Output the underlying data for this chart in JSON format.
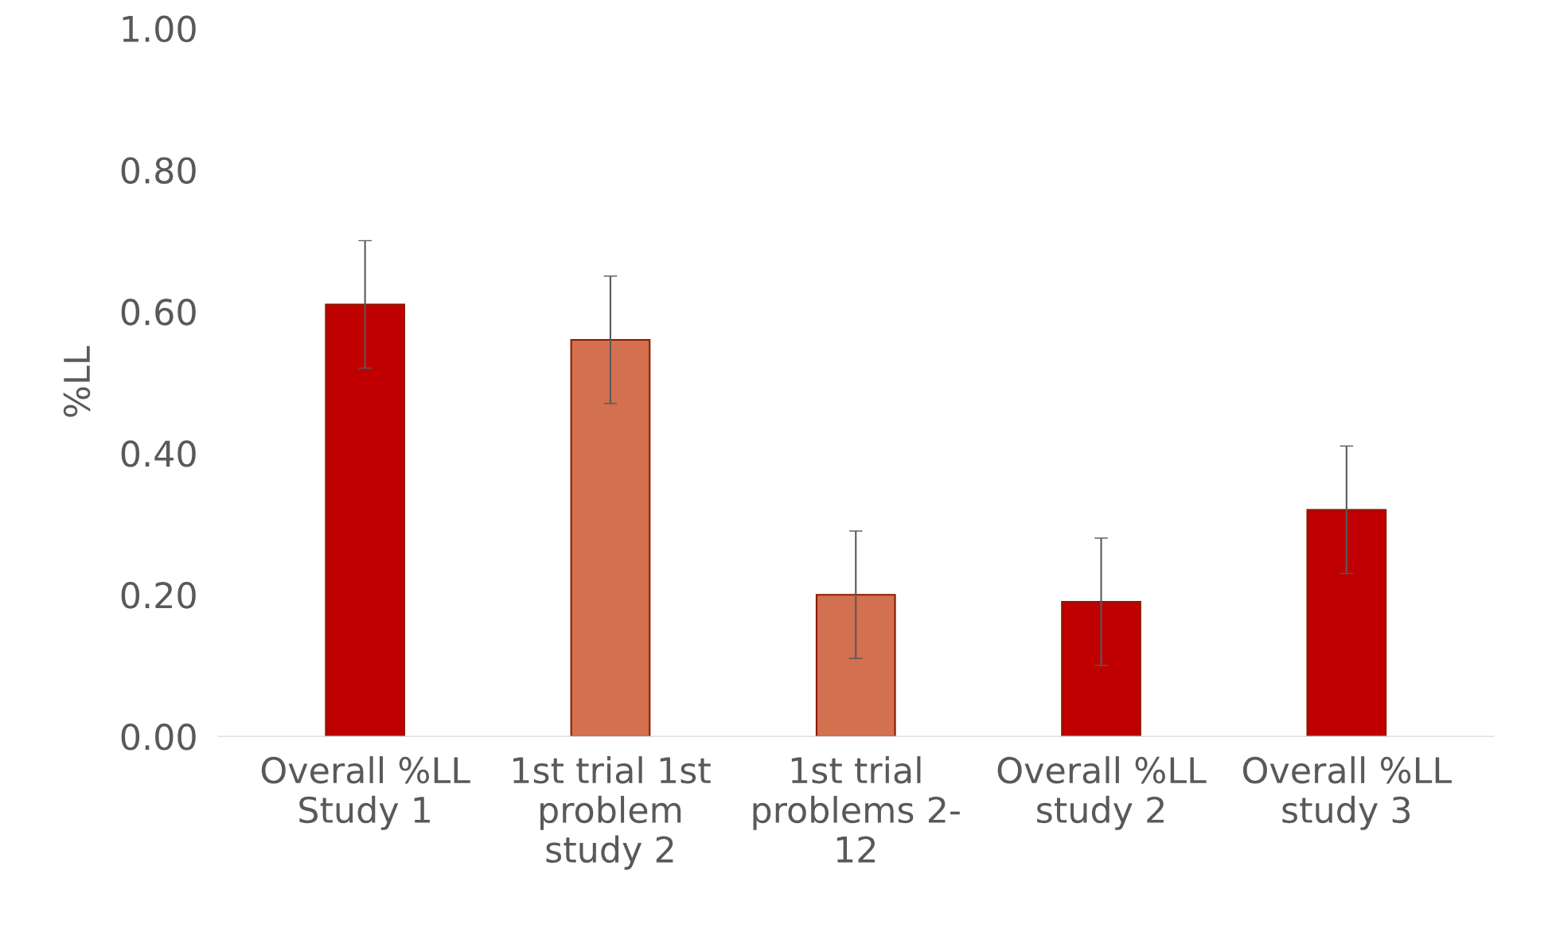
{
  "chart_data": {
    "type": "bar",
    "ylabel": "%LL",
    "categories": [
      "Overall %LL\nStudy 1",
      "1st trial 1st\nproblem\nstudy 2",
      "1st trial\nproblems 2-\n12",
      "Overall %LL\nstudy 2",
      "Overall %LL\nstudy 3"
    ],
    "values": [
      0.61,
      0.56,
      0.2,
      0.19,
      0.32
    ],
    "errors": [
      0.09,
      0.09,
      0.09,
      0.09,
      0.09
    ],
    "colors": [
      "#c00000",
      "#d2704f",
      "#d2704f",
      "#c00000",
      "#c00000"
    ],
    "ylim": [
      0,
      1
    ],
    "yticks": [
      {
        "value": 0,
        "label": "0.00"
      },
      {
        "value": 0.2,
        "label": "0.20"
      },
      {
        "value": 0.4,
        "label": "0.40"
      },
      {
        "value": 0.6,
        "label": "0.60"
      },
      {
        "value": 0.8,
        "label": "0.80"
      },
      {
        "value": 1,
        "label": "1.00"
      }
    ],
    "grid": false
  }
}
